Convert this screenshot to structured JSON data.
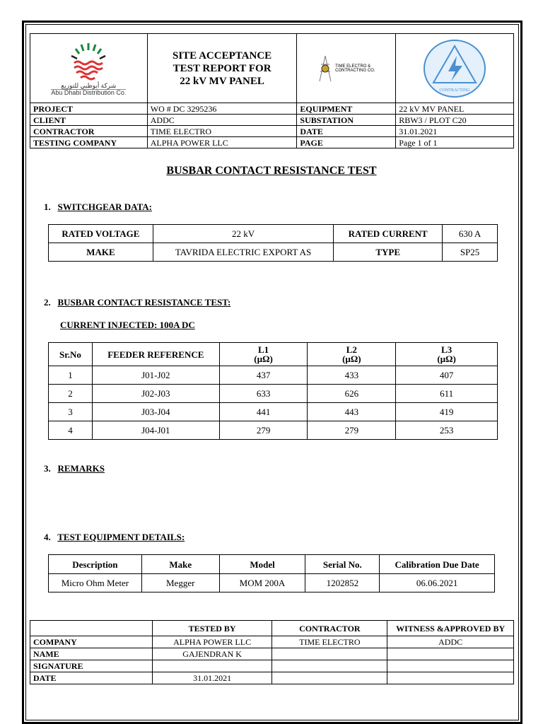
{
  "header": {
    "title_lines": [
      "SITE ACCEPTANCE",
      "TEST REPORT FOR",
      "22 kV MV PANEL"
    ],
    "logos": {
      "addc": "شركة أبوظبي للتوزيع Abu Dhabi Distribution Co.",
      "time_electro": "TIME ELECTRO & CONTRACTING CO.",
      "alpha_power": "ALPHA POWER ELECTRO-MECHANICAL CONTRACTING"
    },
    "rows": [
      [
        "PROJECT",
        "WO # DC 3295236",
        "EQUIPMENT",
        "22 kV MV PANEL"
      ],
      [
        "CLIENT",
        "ADDC",
        "SUBSTATION",
        "RBW3 / PLOT C20"
      ],
      [
        "CONTRACTOR",
        "TIME ELECTRO",
        "DATE",
        "31.01.2021"
      ],
      [
        "TESTING COMPANY",
        "ALPHA POWER LLC",
        "PAGE",
        "Page 1 of 1"
      ]
    ]
  },
  "doc_title": "BUSBAR CONTACT RESISTANCE TEST",
  "s1": {
    "num": "1.",
    "title": "SWITCHGEAR DATA:",
    "rows": [
      [
        "RATED VOLTAGE",
        "22 kV",
        "RATED CURRENT",
        "630 A"
      ],
      [
        "MAKE",
        "TAVRIDA ELECTRIC EXPORT AS",
        "TYPE",
        "SP25"
      ]
    ]
  },
  "s2": {
    "num": "2.",
    "title": "BUSBAR CONTACT RESISTANCE TEST:",
    "current": "CURRENT INJECTED: 100A DC",
    "headers": [
      "Sr.No",
      "FEEDER REFERENCE",
      "L1",
      "L2",
      "L3"
    ],
    "unit": "(µΩ)",
    "rows": [
      [
        "1",
        "J01-J02",
        "437",
        "433",
        "407"
      ],
      [
        "2",
        "J02-J03",
        "633",
        "626",
        "611"
      ],
      [
        "3",
        "J03-J04",
        "441",
        "443",
        "419"
      ],
      [
        "4",
        "J04-J01",
        "279",
        "279",
        "253"
      ]
    ]
  },
  "s3": {
    "num": "3.",
    "title": "REMARKS"
  },
  "s4": {
    "num": "4.",
    "title": "TEST EQUIPMENT DETAILS:",
    "headers": [
      "Description",
      "Make",
      "Model",
      "Serial No.",
      "Calibration Due Date"
    ],
    "row": [
      "Micro Ohm Meter",
      "Megger",
      "MOM 200A",
      "1202852",
      "06.06.2021"
    ]
  },
  "sign": {
    "headers": [
      "",
      "TESTED BY",
      "CONTRACTOR",
      "WITNESS &APPROVED BY"
    ],
    "rows": [
      [
        "COMPANY",
        "ALPHA POWER LLC",
        "TIME ELECTRO",
        "ADDC"
      ],
      [
        "NAME",
        "GAJENDRAN K",
        "",
        ""
      ],
      [
        "SIGNATURE",
        "",
        "",
        ""
      ],
      [
        "DATE",
        "31.01.2021",
        "",
        ""
      ]
    ]
  }
}
